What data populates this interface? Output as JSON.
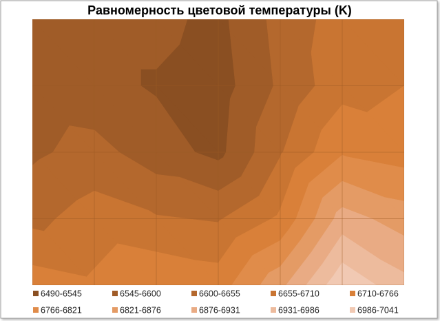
{
  "chart_data": {
    "type": "contour",
    "title": "Равномерность цветовой температуры (K)",
    "grid": true,
    "z": [
      [
        6560,
        6560,
        6560,
        6530,
        6620,
        6680,
        6700
      ],
      [
        6570,
        6560,
        6540,
        6520,
        6610,
        6690,
        6710
      ],
      [
        6590,
        6620,
        6570,
        6530,
        6650,
        6760,
        6740
      ],
      [
        6640,
        6680,
        6660,
        6650,
        6720,
        6900,
        6850
      ],
      [
        6740,
        6720,
        6760,
        6740,
        6860,
        7030,
        6950
      ]
    ],
    "bands": [
      {
        "label": "6490-6545",
        "min": 6490,
        "max": 6545,
        "color": "#8a4f22"
      },
      {
        "label": "6545-6600",
        "min": 6545,
        "max": 6600,
        "color": "#a05c28"
      },
      {
        "label": "6600-6655",
        "min": 6600,
        "max": 6655,
        "color": "#b4682d"
      },
      {
        "label": "6655-6710",
        "min": 6655,
        "max": 6710,
        "color": "#c97532"
      },
      {
        "label": "6710-6766",
        "min": 6710,
        "max": 6766,
        "color": "#d98039"
      },
      {
        "label": "6766-6821",
        "min": 6766,
        "max": 6821,
        "color": "#e08c4a"
      },
      {
        "label": "6821-6876",
        "min": 6821,
        "max": 6876,
        "color": "#e49b65"
      },
      {
        "label": "6876-6931",
        "min": 6876,
        "max": 6931,
        "color": "#e9ab84"
      },
      {
        "label": "6931-6986",
        "min": 6931,
        "max": 6986,
        "color": "#edbb9d"
      },
      {
        "label": "6986-7041",
        "min": 6986,
        "max": 7041,
        "color": "#f1c9b3"
      }
    ]
  }
}
